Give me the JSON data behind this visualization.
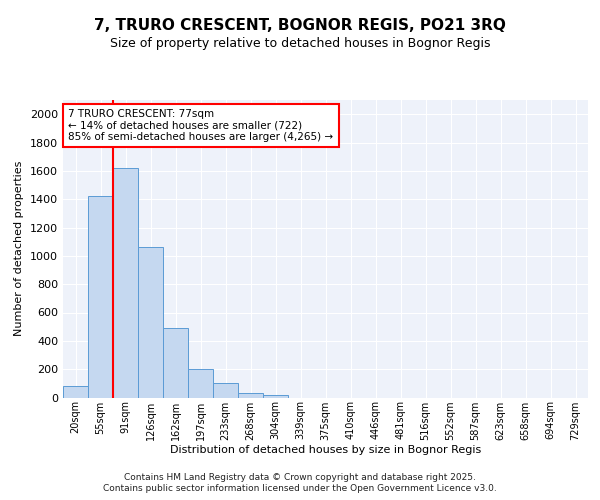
{
  "title": "7, TRURO CRESCENT, BOGNOR REGIS, PO21 3RQ",
  "subtitle": "Size of property relative to detached houses in Bognor Regis",
  "xlabel": "Distribution of detached houses by size in Bognor Regis",
  "ylabel": "Number of detached properties",
  "bin_labels": [
    "20sqm",
    "55sqm",
    "91sqm",
    "126sqm",
    "162sqm",
    "197sqm",
    "233sqm",
    "268sqm",
    "304sqm",
    "339sqm",
    "375sqm",
    "410sqm",
    "446sqm",
    "481sqm",
    "516sqm",
    "552sqm",
    "587sqm",
    "623sqm",
    "658sqm",
    "694sqm",
    "729sqm"
  ],
  "bin_values": [
    80,
    1420,
    1620,
    1060,
    490,
    200,
    105,
    35,
    20,
    0,
    0,
    0,
    0,
    0,
    0,
    0,
    0,
    0,
    0,
    0,
    0
  ],
  "bar_color": "#c5d8f0",
  "bar_edge_color": "#5b9bd5",
  "vline_x_index": 1.5,
  "vline_color": "red",
  "annotation_title": "7 TRURO CRESCENT: 77sqm",
  "annotation_line1": "← 14% of detached houses are smaller (722)",
  "annotation_line2": "85% of semi-detached houses are larger (4,265) →",
  "annotation_box_color": "white",
  "annotation_box_edge": "red",
  "ylim": [
    0,
    2100
  ],
  "yticks": [
    0,
    200,
    400,
    600,
    800,
    1000,
    1200,
    1400,
    1600,
    1800,
    2000
  ],
  "bg_color": "#eef2fa",
  "grid_color": "#ffffff",
  "footer1": "Contains HM Land Registry data © Crown copyright and database right 2025.",
  "footer2": "Contains public sector information licensed under the Open Government Licence v3.0."
}
